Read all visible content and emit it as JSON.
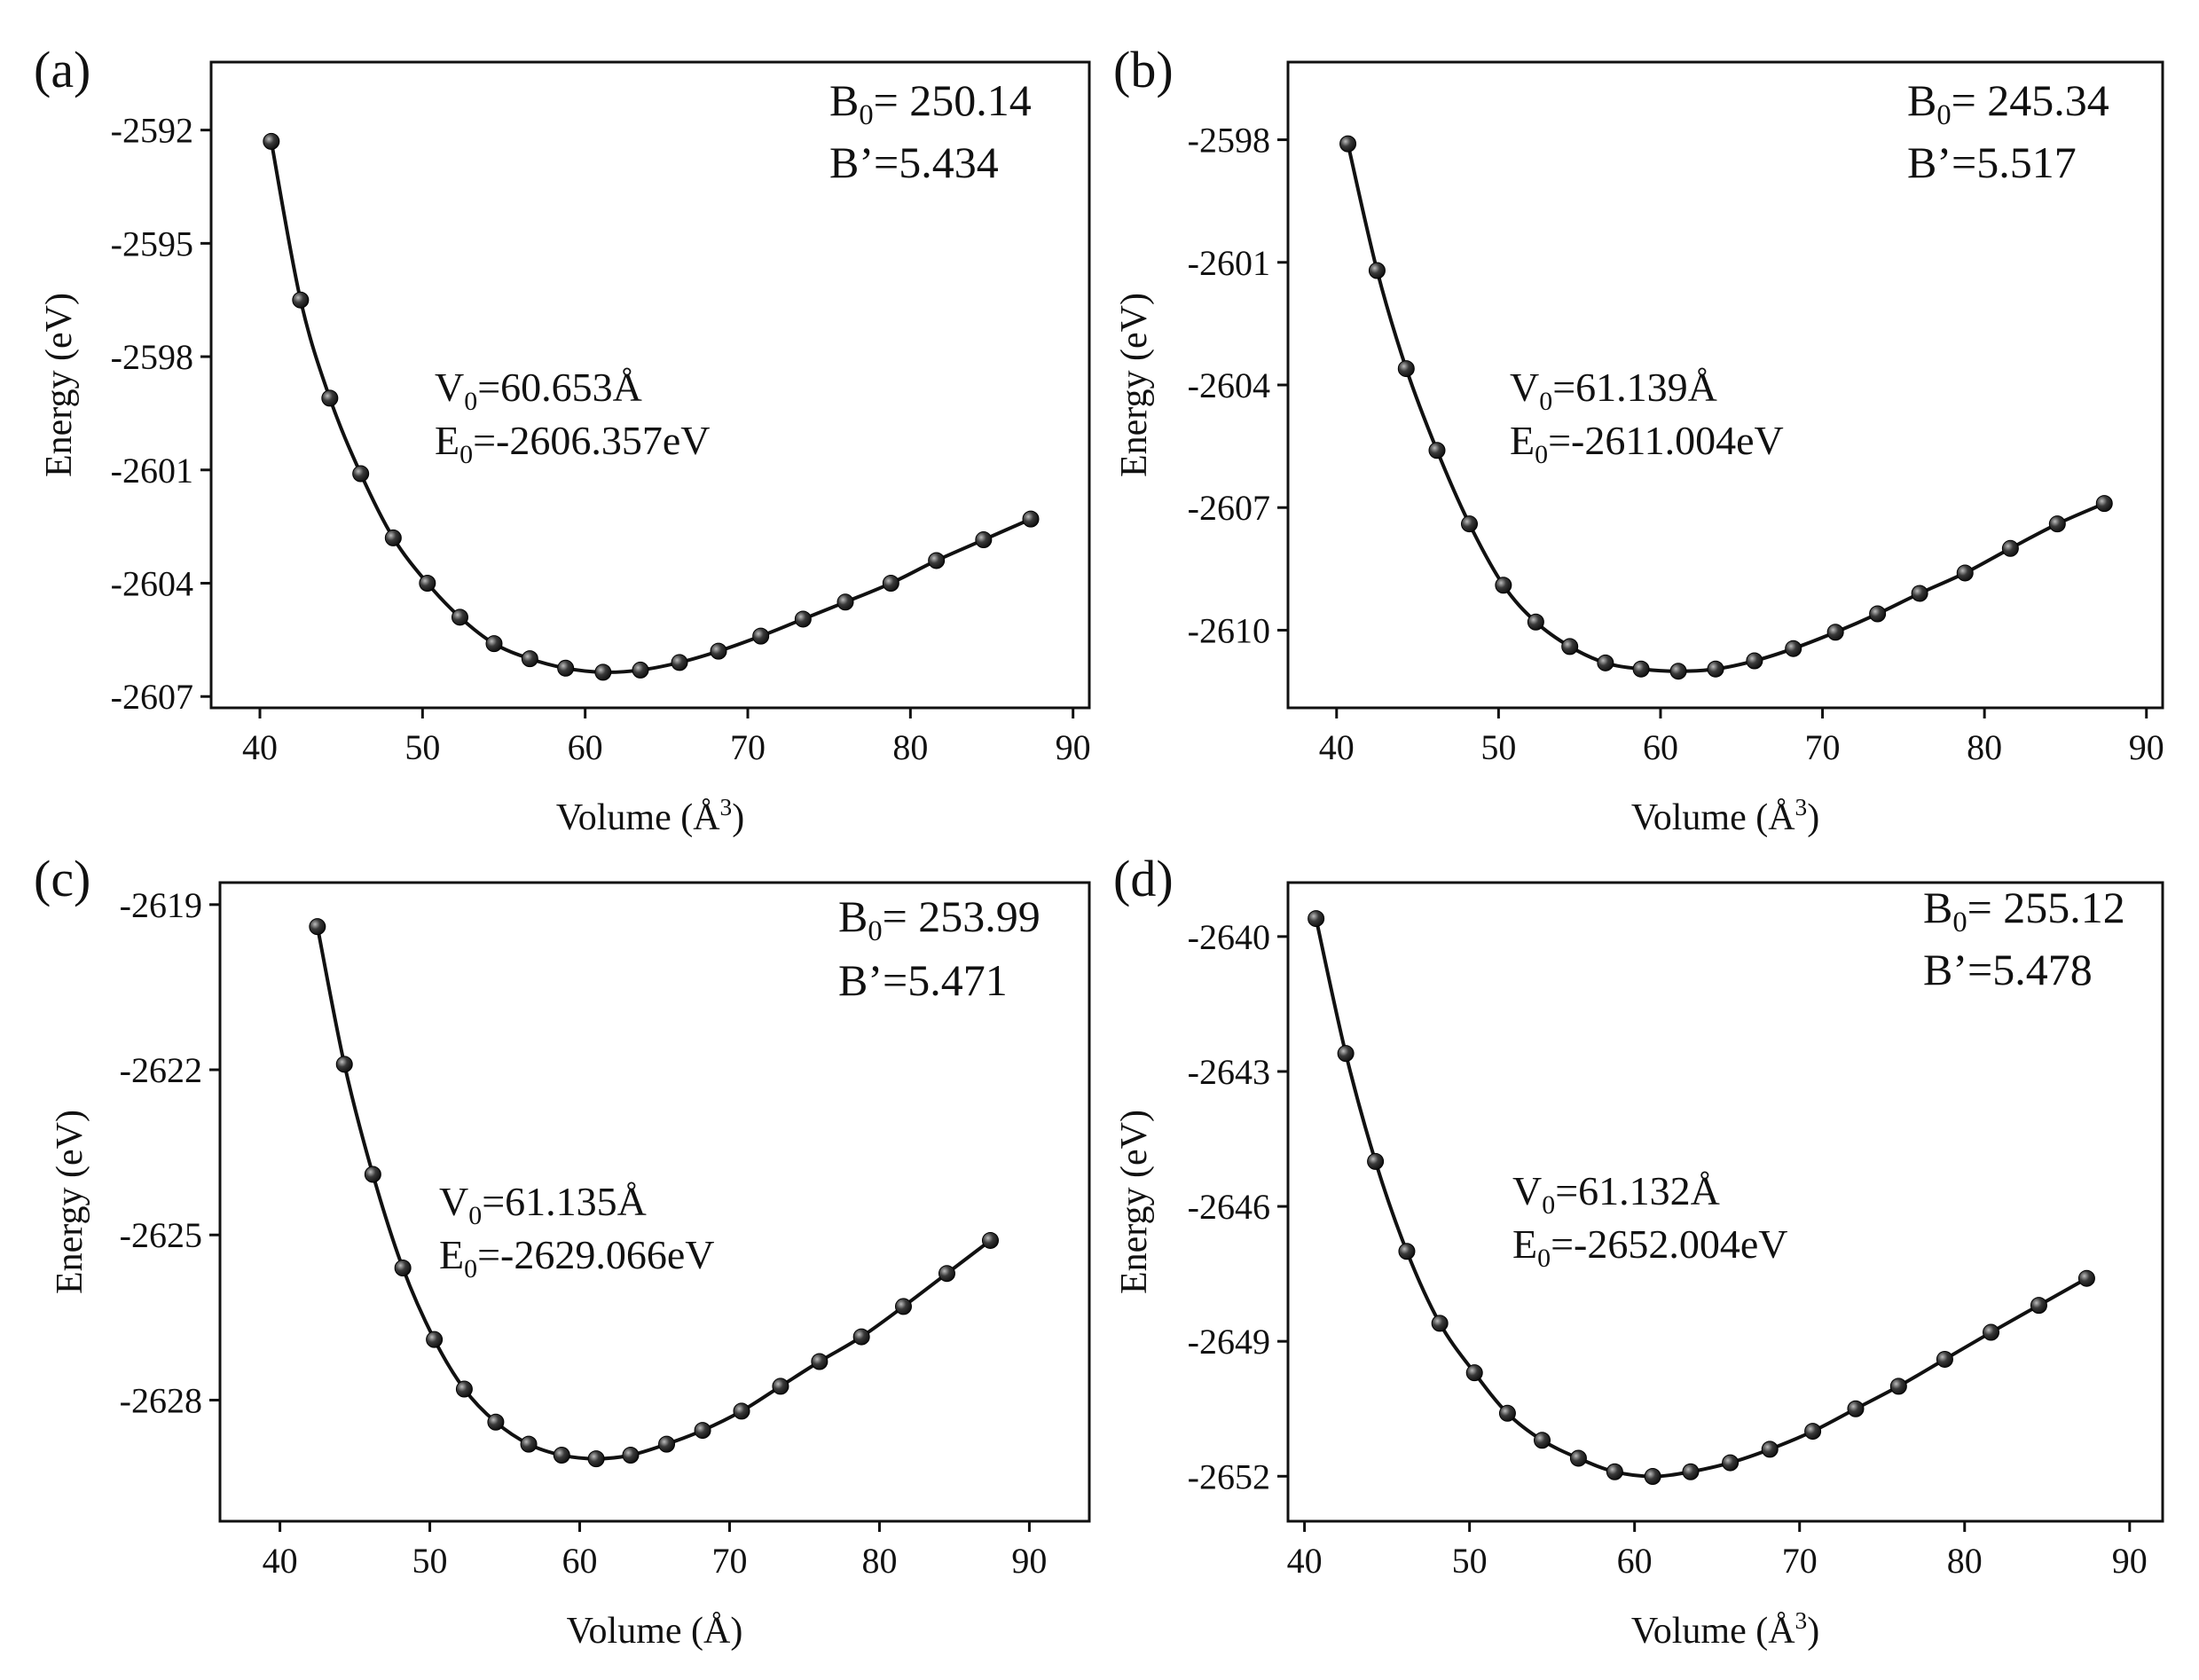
{
  "chart_data": [
    {
      "type": "scatter",
      "panel_label": "(a)",
      "title": "",
      "xlabel": "Volume",
      "xlabel_unit": "(Å",
      "xlabel_sup": "3",
      "xlabel_close": ")",
      "ylabel": "Energy (eV)",
      "xlim": [
        37,
        91
      ],
      "ylim": [
        -2607.3,
        -2590.2
      ],
      "xticks": [
        40,
        50,
        60,
        70,
        80,
        90
      ],
      "yticks": [
        -2592,
        -2595,
        -2598,
        -2601,
        -2604,
        -2607
      ],
      "B0_prefix": "B",
      "B0_sub": "0",
      "B0_value": "= 250.14",
      "Bp_text": "B’=5.434",
      "V0_prefix": "V",
      "V0_sub": "0",
      "V0_value": "=60.653Å",
      "E0_prefix": "E",
      "E0_sub": "0",
      "E0_value": "=-2606.357eV",
      "x": [
        40.7,
        42.5,
        44.3,
        46.2,
        48.2,
        50.3,
        52.3,
        54.4,
        56.6,
        58.8,
        61.1,
        63.4,
        65.8,
        68.2,
        70.8,
        73.4,
        76.0,
        78.8,
        81.6,
        84.5,
        87.4
      ],
      "y": [
        -2592.3,
        -2596.5,
        -2599.1,
        -2601.1,
        -2602.8,
        -2604.0,
        -2604.9,
        -2605.6,
        -2606.0,
        -2606.25,
        -2606.357,
        -2606.3,
        -2606.1,
        -2605.8,
        -2605.4,
        -2604.95,
        -2604.5,
        -2604.0,
        -2603.4,
        -2602.85,
        -2602.3
      ]
    },
    {
      "type": "scatter",
      "panel_label": "(b)",
      "title": "",
      "xlabel": "Volume",
      "xlabel_unit": "(Å",
      "xlabel_sup": "3",
      "xlabel_close": ")",
      "ylabel": "Energy (eV)",
      "xlim": [
        37,
        91
      ],
      "ylim": [
        -2611.9,
        -2596.1
      ],
      "xticks": [
        40,
        50,
        60,
        70,
        80,
        90
      ],
      "yticks": [
        -2598,
        -2601,
        -2604,
        -2607,
        -2610
      ],
      "B0_prefix": "B",
      "B0_sub": "0",
      "B0_value": "= 245.34",
      "Bp_text": "B’=5.517",
      "V0_prefix": "V",
      "V0_sub": "0",
      "V0_value": "=61.139Å",
      "E0_prefix": "E",
      "E0_sub": "0",
      "E0_value": "=-2611.004eV",
      "x": [
        40.7,
        42.5,
        44.3,
        46.2,
        48.2,
        50.3,
        52.3,
        54.4,
        56.6,
        58.8,
        61.1,
        63.4,
        65.8,
        68.2,
        70.8,
        73.4,
        76.0,
        78.8,
        81.6,
        84.5,
        87.4
      ],
      "y": [
        -2598.1,
        -2601.2,
        -2603.6,
        -2605.6,
        -2607.4,
        -2608.9,
        -2609.8,
        -2610.4,
        -2610.8,
        -2610.95,
        -2611.004,
        -2610.95,
        -2610.75,
        -2610.45,
        -2610.05,
        -2609.6,
        -2609.1,
        -2608.6,
        -2608.0,
        -2607.4,
        -2606.9
      ]
    },
    {
      "type": "scatter",
      "panel_label": "(c)",
      "title": "",
      "xlabel": "Volume",
      "xlabel_unit": "(Å",
      "xlabel_sup": "",
      "xlabel_close": ")",
      "ylabel": "Energy (eV)",
      "xlim": [
        36,
        94
      ],
      "ylim": [
        -2630.2,
        -2618.6
      ],
      "xticks": [
        40,
        50,
        60,
        70,
        80,
        90
      ],
      "yticks": [
        -2619,
        -2622,
        -2625,
        -2628
      ],
      "B0_prefix": "B",
      "B0_sub": "0",
      "B0_value": "= 253.99",
      "Bp_text": "B’=5.471",
      "V0_prefix": "V",
      "V0_sub": "0",
      "V0_value": "=61.135Å",
      "E0_prefix": "E",
      "E0_sub": "0",
      "E0_value": "=-2629.066eV",
      "x": [
        42.5,
        44.3,
        46.2,
        48.2,
        50.3,
        52.3,
        54.4,
        56.6,
        58.8,
        61.1,
        63.4,
        65.8,
        68.2,
        70.8,
        73.4,
        76.0,
        78.8,
        81.6,
        84.5,
        87.4
      ],
      "y": [
        -2619.4,
        -2621.9,
        -2623.9,
        -2625.6,
        -2626.9,
        -2627.8,
        -2628.4,
        -2628.8,
        -2629.0,
        -2629.066,
        -2629.0,
        -2628.8,
        -2628.55,
        -2628.2,
        -2627.75,
        -2627.3,
        -2626.85,
        -2626.3,
        -2625.7,
        -2625.1
      ]
    },
    {
      "type": "scatter",
      "panel_label": "(d)",
      "title": "",
      "xlabel": "Volume",
      "xlabel_unit": "(Å",
      "xlabel_sup": "3",
      "xlabel_close": ")",
      "ylabel": "Energy (eV)",
      "xlim": [
        39,
        92
      ],
      "ylim": [
        -2653.0,
        -2638.8
      ],
      "xticks": [
        40,
        50,
        60,
        70,
        80,
        90
      ],
      "yticks": [
        -2640,
        -2643,
        -2646,
        -2649,
        -2652
      ],
      "B0_prefix": "B",
      "B0_sub": "0",
      "B0_value": "= 255.12",
      "Bp_text": "B’=5.478",
      "V0_prefix": "V",
      "V0_sub": "0",
      "V0_value": "=61.132Å",
      "E0_prefix": "E",
      "E0_sub": "0",
      "E0_value": "=-2652.004eV",
      "x": [
        40.7,
        42.5,
        44.3,
        46.2,
        48.2,
        50.3,
        52.3,
        54.4,
        56.6,
        58.8,
        61.1,
        63.4,
        65.8,
        68.2,
        70.8,
        73.4,
        76.0,
        78.8,
        81.6,
        84.5,
        87.4
      ],
      "y": [
        -2639.6,
        -2642.6,
        -2645.0,
        -2647.0,
        -2648.6,
        -2649.7,
        -2650.6,
        -2651.2,
        -2651.6,
        -2651.9,
        -2652.004,
        -2651.9,
        -2651.7,
        -2651.4,
        -2651.0,
        -2650.5,
        -2650.0,
        -2649.4,
        -2648.8,
        -2648.2,
        -2647.6
      ]
    }
  ],
  "colors": {
    "line": "#111111",
    "marker_fill": "#2b2b2b",
    "marker_highlight": "#9a9a9a",
    "axis": "#111111"
  }
}
